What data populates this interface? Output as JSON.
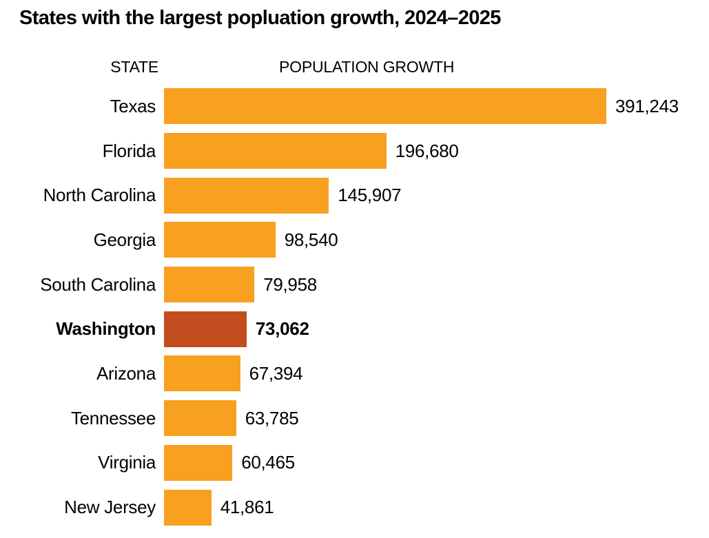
{
  "chart_data": {
    "type": "bar",
    "orientation": "horizontal",
    "title": "States with the largest popluation growth, 2024–2025",
    "columns": {
      "state": "STATE",
      "growth": "POPULATION GROWTH"
    },
    "rows": [
      {
        "state": "Texas",
        "value": 391243,
        "label": "391,243",
        "highlight": false
      },
      {
        "state": "Florida",
        "value": 196680,
        "label": "196,680",
        "highlight": false
      },
      {
        "state": "North Carolina",
        "value": 145907,
        "label": "145,907",
        "highlight": false
      },
      {
        "state": "Georgia",
        "value": 98540,
        "label": "98,540",
        "highlight": false
      },
      {
        "state": "South Carolina",
        "value": 79958,
        "label": "79,958",
        "highlight": false
      },
      {
        "state": "Washington",
        "value": 73062,
        "label": "73,062",
        "highlight": true
      },
      {
        "state": "Arizona",
        "value": 67394,
        "label": "67,394",
        "highlight": false
      },
      {
        "state": "Tennessee",
        "value": 63785,
        "label": "63,785",
        "highlight": false
      },
      {
        "state": "Virginia",
        "value": 60465,
        "label": "60,465",
        "highlight": false
      },
      {
        "state": "New Jersey",
        "value": 41861,
        "label": "41,861",
        "highlight": false
      }
    ],
    "x_max": 391243,
    "highlight_state": "Washington",
    "grid": false,
    "legend": false,
    "colors": {
      "bar": "#F8A01F",
      "highlight_bar": "#C24D1E",
      "text": "#000000",
      "background": "#FFFFFF"
    }
  }
}
